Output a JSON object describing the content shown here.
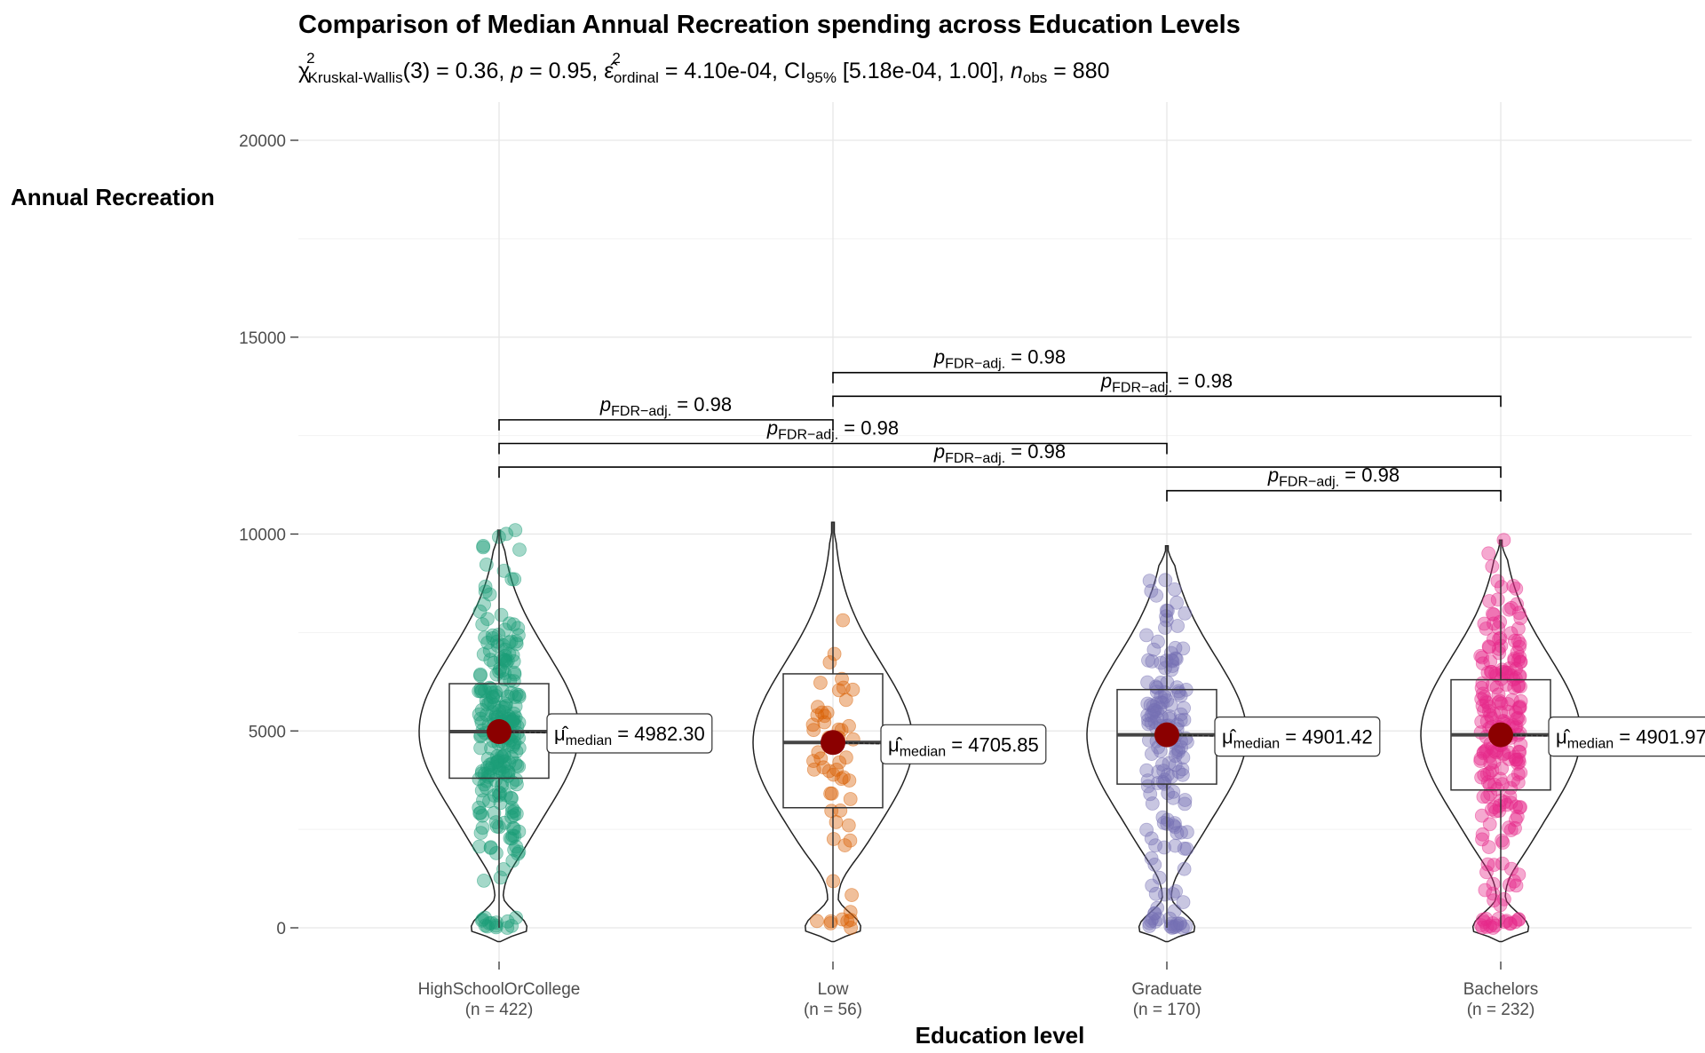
{
  "chart_data": {
    "type": "violin-box-scatter",
    "title": "Comparison of Median Annual Recreation spending across Education Levels",
    "subtitle": {
      "chi_symbol": "χ",
      "sup2": "2",
      "kw_sub": "Kruskal-Wallis",
      "part1": "(3) = 0.36, ",
      "p_italic": "p",
      "part2": " = 0.95, ",
      "eps_symbol": "ε̂",
      "ord_sub": "ordinal",
      "part3": " = 4.10e-04, CI",
      "ci_sub": "95%",
      "part4": " [5.18e-04, 1.00], ",
      "n_italic": "n",
      "obs_sub": "obs",
      "part5": " = 880"
    },
    "xlabel": "Education level",
    "ylabel": "Annual Recreation",
    "ylim": [
      -800,
      20900
    ],
    "yticks": [
      0,
      5000,
      10000,
      15000,
      20000
    ],
    "ytick_labels": [
      "0",
      "5000",
      "10000",
      "15000",
      "20000"
    ],
    "grid": true,
    "categories": [
      {
        "label": "HighSchoolOrCollege",
        "n_label": "(n = 422)",
        "n": 422,
        "color": "#1b9e77",
        "median": 4982.3,
        "median_label": "4982.30",
        "q1": 3800,
        "q3": 6200,
        "whisker_low": 0,
        "whisker_high": 10100,
        "ymax": 10100
      },
      {
        "label": "Low",
        "n_label": "(n = 56)",
        "n": 56,
        "color": "#d95f02",
        "median": 4705.85,
        "median_label": "4705.85",
        "q1": 3050,
        "q3": 6450,
        "whisker_low": 0,
        "whisker_high": 10300,
        "ymax": 10300
      },
      {
        "label": "Graduate",
        "n_label": "(n = 170)",
        "n": 170,
        "color": "#7570b3",
        "median": 4901.42,
        "median_label": "4901.42",
        "q1": 3650,
        "q3": 6050,
        "whisker_low": 0,
        "whisker_high": 9700,
        "ymax": 9700
      },
      {
        "label": "Bachelors",
        "n_label": "(n = 232)",
        "n": 232,
        "color": "#e7298a",
        "median": 4901.97,
        "median_label": "4901.97",
        "q1": 3500,
        "q3": 6300,
        "whisker_low": 0,
        "whisker_high": 9850,
        "ymax": 9850
      }
    ],
    "median_symbol": "μ̂",
    "median_sub": "median",
    "median_eq": " = ",
    "comparisons": [
      {
        "groups": [
          1,
          2
        ],
        "y": 14100,
        "p_text": " = 0.98"
      },
      {
        "groups": [
          1,
          3
        ],
        "y": 13500,
        "p_text": " = 0.98"
      },
      {
        "groups": [
          0,
          1
        ],
        "y": 12900,
        "p_text": " = 0.98"
      },
      {
        "groups": [
          0,
          2
        ],
        "y": 12300,
        "p_text": " = 0.98"
      },
      {
        "groups": [
          0,
          3
        ],
        "y": 11700,
        "p_text": " = 0.98"
      },
      {
        "groups": [
          2,
          3
        ],
        "y": 11100,
        "p_text": " = 0.98"
      }
    ],
    "p_symbol": "p",
    "p_sub": "FDR−adj."
  }
}
